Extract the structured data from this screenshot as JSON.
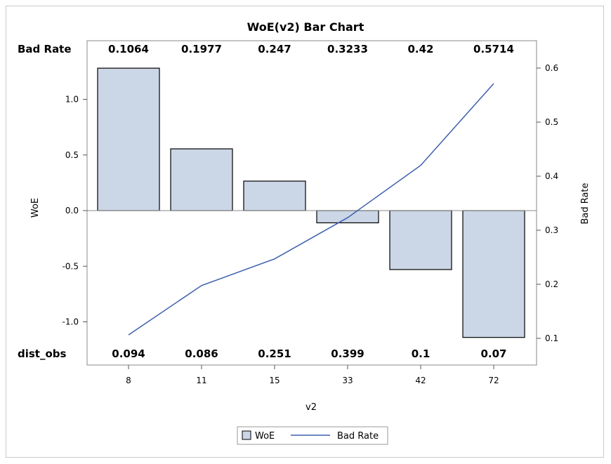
{
  "chart_data": {
    "type": "bar",
    "title": "WoE(v2) Bar Chart",
    "xlabel": "v2",
    "ylabel": "WoE",
    "y2label": "Bad Rate",
    "categories": [
      "8",
      "11",
      "15",
      "33",
      "42",
      "72"
    ],
    "ylim": [
      -1.2,
      1.55
    ],
    "y2lim": [
      0.065,
      0.66
    ],
    "yticks": [
      "1.0",
      "0.5",
      "0.0",
      "-0.5",
      "-1.0"
    ],
    "y2ticks": [
      "0.6",
      "0.5",
      "0.4",
      "0.3",
      "0.2",
      "0.1"
    ],
    "series": [
      {
        "name": "WoE",
        "kind": "bar",
        "axis": "left",
        "color": "#cbd6e6",
        "values": [
          1.28,
          0.555,
          0.265,
          -0.11,
          -0.53,
          -1.14
        ]
      },
      {
        "name": "Bad Rate",
        "kind": "line",
        "axis": "right",
        "color": "#3c5fae",
        "values": [
          0.1064,
          0.1977,
          0.247,
          0.3233,
          0.42,
          0.5714
        ]
      }
    ],
    "inset_top": {
      "label": "Bad Rate",
      "values": [
        "0.1064",
        "0.1977",
        "0.247",
        "0.3233",
        "0.42",
        "0.5714"
      ]
    },
    "inset_bottom": {
      "label": "dist_obs",
      "values": [
        "0.094",
        "0.086",
        "0.251",
        "0.399",
        "0.1",
        "0.07"
      ]
    },
    "legend": {
      "position": "bottom",
      "items": [
        "WoE",
        "Bad Rate"
      ]
    },
    "grid": false
  }
}
